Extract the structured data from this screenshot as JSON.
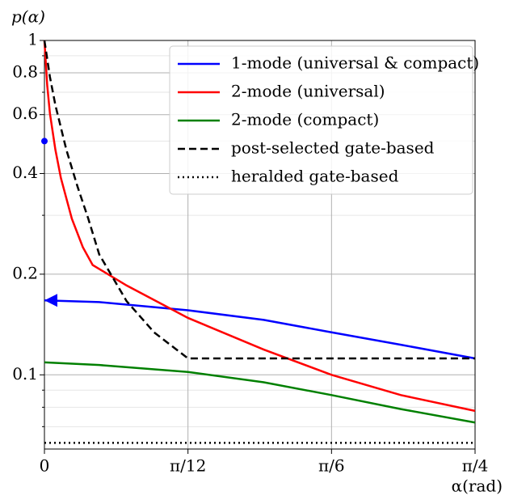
{
  "chart_data": {
    "type": "line",
    "ylabel": "p(α)",
    "xlabel": "α(rad)",
    "xlim": [
      0,
      0.7854
    ],
    "ylim": [
      0.06,
      1
    ],
    "log_y": true,
    "grid": true,
    "legend": "upper right",
    "xticks": [
      {
        "value": 0,
        "label": "0"
      },
      {
        "value": 0.2618,
        "label": "π/12"
      },
      {
        "value": 0.5236,
        "label": "π/6"
      },
      {
        "value": 0.7854,
        "label": "π/4"
      }
    ],
    "yticks": [
      0.1,
      0.2,
      0.4,
      0.6,
      0.8,
      1
    ],
    "yminorticks": [
      0.07,
      0.08,
      0.09,
      0.3,
      0.5,
      0.7,
      0.9
    ],
    "series": [
      {
        "name": "1-mode (universal & compact)",
        "color": "#0000ff",
        "dash": "solid",
        "arrow": true,
        "x": [
          0,
          0.1,
          0.2618,
          0.4,
          0.5236,
          0.65,
          0.7854
        ],
        "values": [
          0.167,
          0.165,
          0.156,
          0.146,
          0.134,
          0.123,
          0.112
        ]
      },
      {
        "name": "2-mode (universal)",
        "color": "#ff0000",
        "dash": "solid",
        "x": [
          0,
          0.005,
          0.01,
          0.02,
          0.03,
          0.05,
          0.07,
          0.088,
          0.15,
          0.2618,
          0.4,
          0.5236,
          0.65,
          0.7854
        ],
        "values": [
          1,
          0.736,
          0.605,
          0.471,
          0.388,
          0.293,
          0.241,
          0.213,
          0.185,
          0.148,
          0.119,
          0.1,
          0.087,
          0.078
        ]
      },
      {
        "name": "2-mode (compact)",
        "color": "#008000",
        "dash": "solid",
        "x": [
          0,
          0.1,
          0.2618,
          0.4,
          0.5236,
          0.65,
          0.7854
        ],
        "values": [
          0.109,
          0.107,
          0.102,
          0.095,
          0.087,
          0.079,
          0.072
        ]
      },
      {
        "name": "post-selected gate-based",
        "color": "#000000",
        "dash": "dashed",
        "x": [
          0,
          0.01,
          0.02,
          0.04,
          0.06,
          0.08,
          0.1,
          0.15,
          0.2,
          0.2618,
          0.7854
        ],
        "values": [
          1,
          0.778,
          0.64,
          0.471,
          0.367,
          0.293,
          0.229,
          0.166,
          0.134,
          0.112,
          0.112
        ]
      },
      {
        "name": "heralded gate-based",
        "color": "#000000",
        "dash": "dotted",
        "x": [
          0,
          0.7854
        ],
        "values": [
          0.0626,
          0.0626
        ]
      }
    ],
    "points": [
      {
        "x": 0,
        "y": 0.5,
        "color": "#0000ff"
      }
    ]
  }
}
